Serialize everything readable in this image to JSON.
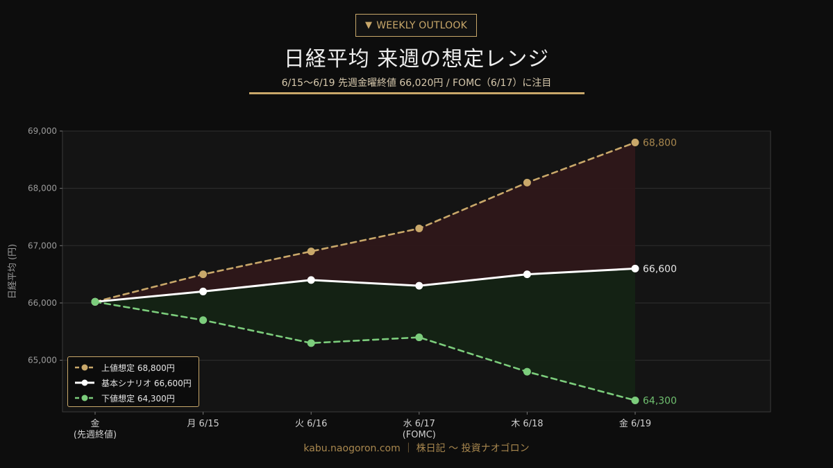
{
  "badge": {
    "icon": "triangle-down-icon",
    "label": "WEEKLY OUTLOOK"
  },
  "title": "日経平均 来週の想定レンジ",
  "subtitle": "6/15〜6/19 先週金曜終値 66,020円 / FOMC（6/17）に注目",
  "footer": "kabu.naogoron.com ｜ 株日記 〜 投資ナオゴロン",
  "colors": {
    "background": "#0d0d0d",
    "accent": "#c9a86a",
    "upper": "#c9a86a",
    "base": "#ffffff",
    "lower": "#7ccd7c",
    "upper_fill": "#2e1719",
    "lower_fill": "#142314"
  },
  "chart_data": {
    "type": "line",
    "categories": [
      "金\n(先週終値)",
      "月 6/15",
      "火 6/16",
      "水 6/17\n(FOMC)",
      "木 6/18",
      "金 6/19"
    ],
    "ylabel": "日経平均 (円)",
    "xlabel": "",
    "ylim": [
      64100,
      69000
    ],
    "yticks": [
      "65,000",
      "66,000",
      "67,000",
      "68,000",
      "69,000"
    ],
    "ytick_values": [
      65000,
      66000,
      67000,
      68000,
      69000
    ],
    "grid": true,
    "legend_position": "bottom-left",
    "series": [
      {
        "name": "上値想定 68,800円",
        "key": "upper",
        "style": "dashed",
        "values": [
          66020,
          66500,
          66900,
          67300,
          68100,
          68800
        ],
        "end_label": "68,800"
      },
      {
        "name": "基本シナリオ 66,600円",
        "key": "base",
        "style": "solid",
        "values": [
          66020,
          66200,
          66400,
          66300,
          66500,
          66600
        ],
        "end_label": "66,600"
      },
      {
        "name": "下値想定 64,300円",
        "key": "lower",
        "style": "dashed",
        "values": [
          66020,
          65700,
          65300,
          65400,
          64800,
          64300
        ],
        "end_label": "64,300"
      }
    ]
  }
}
